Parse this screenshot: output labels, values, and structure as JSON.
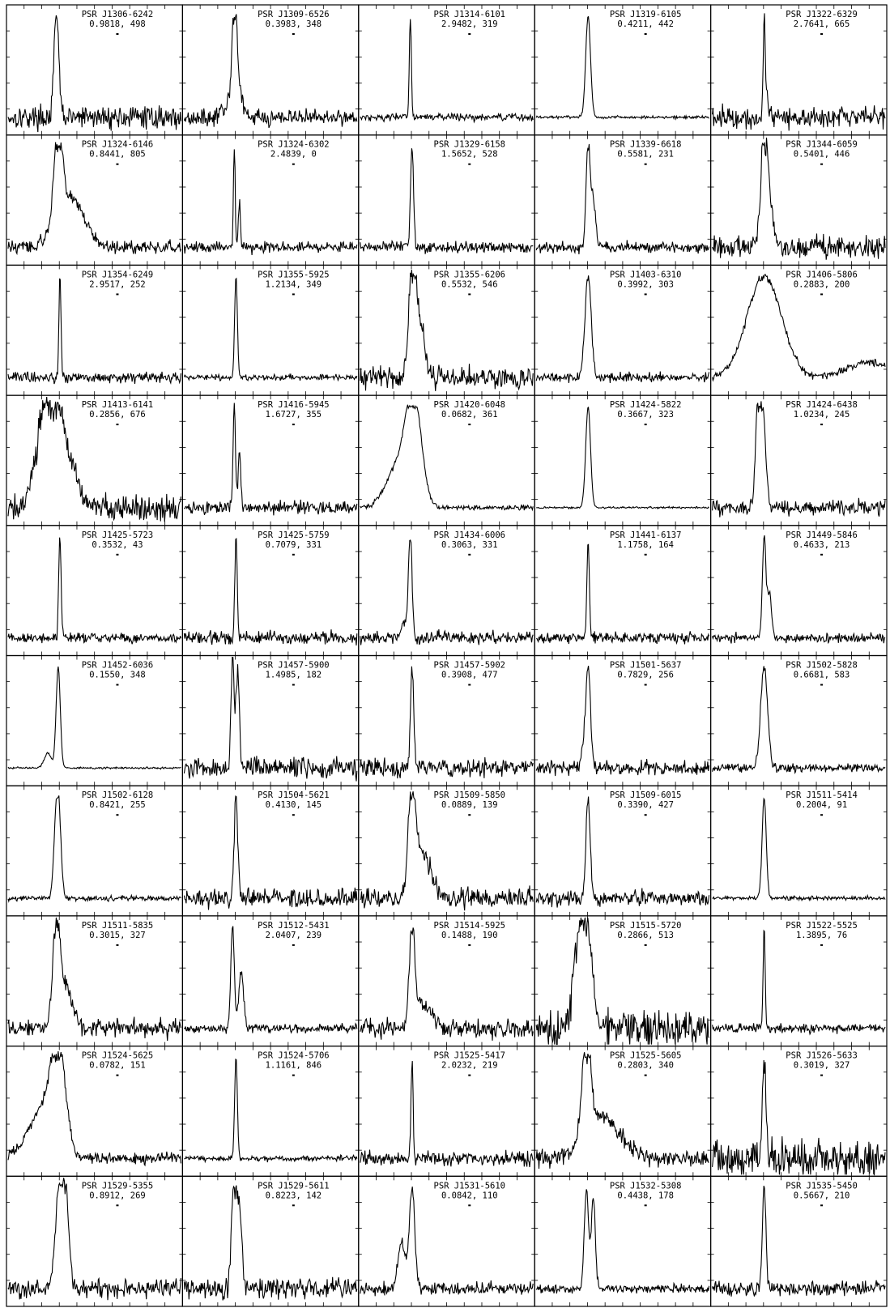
{
  "chart_data": {
    "type": "line",
    "layout": "grid of pulse profiles, 5 columns x 10 rows",
    "axes": "no labels; tick marks on all panel edges",
    "panels": [
      {
        "name": "PSR J1306-6242",
        "params": "0.9818, 498",
        "profile": {
          "peak_phase": 0.28,
          "width": 0.014,
          "noise": 0.12,
          "components": []
        }
      },
      {
        "name": "PSR J1309-6526",
        "params": "0.3983, 348",
        "profile": {
          "peak_phase": 0.29,
          "width": 0.012,
          "noise": 0.09,
          "components": [
            {
              "phase": 0.31,
              "amp": 0.35,
              "width": 0.02
            },
            {
              "phase": 0.26,
              "amp": 0.15,
              "width": 0.03
            }
          ]
        }
      },
      {
        "name": "PSR J1314-6101",
        "params": "2.9482, 319",
        "profile": {
          "peak_phase": 0.29,
          "width": 0.006,
          "noise": 0.04,
          "components": []
        }
      },
      {
        "name": "PSR J1319-6105",
        "params": "0.4211, 442",
        "profile": {
          "peak_phase": 0.3,
          "width": 0.014,
          "noise": 0.015,
          "components": []
        }
      },
      {
        "name": "PSR J1322-6329",
        "params": "2.7641, 665",
        "profile": {
          "peak_phase": 0.3,
          "width": 0.006,
          "noise": 0.12,
          "components": [
            {
              "phase": 0.32,
              "amp": 0.2,
              "width": 0.01
            }
          ]
        }
      },
      {
        "name": "PSR J1324-6146",
        "params": "0.8441, 805",
        "profile": {
          "peak_phase": 0.29,
          "width": 0.022,
          "noise": 0.07,
          "components": [
            {
              "phase": 0.36,
              "amp": 0.5,
              "width": 0.08
            }
          ]
        }
      },
      {
        "name": "PSR J1324-6302",
        "params": "2.4839, 0",
        "profile": {
          "peak_phase": 0.29,
          "width": 0.005,
          "noise": 0.06,
          "components": [
            {
              "phase": 0.32,
              "amp": 0.45,
              "width": 0.006
            }
          ]
        }
      },
      {
        "name": "PSR J1329-6158",
        "params": "1.5652, 528",
        "profile": {
          "peak_phase": 0.3,
          "width": 0.009,
          "noise": 0.06,
          "components": []
        }
      },
      {
        "name": "PSR J1339-6618",
        "params": "0.5581, 231",
        "profile": {
          "peak_phase": 0.3,
          "width": 0.012,
          "noise": 0.06,
          "components": [
            {
              "phase": 0.33,
              "amp": 0.45,
              "width": 0.014
            }
          ]
        }
      },
      {
        "name": "PSR J1344-6059",
        "params": "0.5401, 446",
        "profile": {
          "peak_phase": 0.3,
          "width": 0.02,
          "noise": 0.12,
          "components": [
            {
              "phase": 0.33,
              "amp": 0.35,
              "width": 0.025
            }
          ]
        }
      },
      {
        "name": "PSR J1354-6249",
        "params": "2.9517, 252",
        "profile": {
          "peak_phase": 0.3,
          "width": 0.006,
          "noise": 0.06,
          "components": []
        }
      },
      {
        "name": "PSR J1355-5925",
        "params": "1.2134, 349",
        "profile": {
          "peak_phase": 0.3,
          "width": 0.008,
          "noise": 0.03,
          "components": []
        }
      },
      {
        "name": "PSR J1355-6206",
        "params": "0.5532, 546",
        "profile": {
          "peak_phase": 0.3,
          "width": 0.02,
          "noise": 0.12,
          "components": [
            {
              "phase": 0.34,
              "amp": 0.55,
              "width": 0.03
            }
          ]
        }
      },
      {
        "name": "PSR J1403-6310",
        "params": "0.3992, 303",
        "profile": {
          "peak_phase": 0.3,
          "width": 0.018,
          "noise": 0.05,
          "components": []
        }
      },
      {
        "name": "PSR J1406-5806",
        "params": "0.2883, 200",
        "profile": {
          "peak_phase": 0.3,
          "width": 0.1,
          "noise": 0.04,
          "components": [
            {
              "phase": 0.9,
              "amp": 0.15,
              "width": 0.12
            }
          ]
        }
      },
      {
        "name": "PSR J1413-6141",
        "params": "0.2856, 676",
        "profile": {
          "peak_phase": 0.27,
          "width": 0.05,
          "noise": 0.15,
          "components": [
            {
              "phase": 0.2,
              "amp": 0.6,
              "width": 0.05
            },
            {
              "phase": 0.36,
              "amp": 0.3,
              "width": 0.06
            }
          ]
        }
      },
      {
        "name": "PSR J1416-5945",
        "params": "1.6727, 355",
        "profile": {
          "peak_phase": 0.29,
          "width": 0.007,
          "noise": 0.07,
          "components": [
            {
              "phase": 0.32,
              "amp": 0.55,
              "width": 0.007
            }
          ]
        }
      },
      {
        "name": "PSR J1420-6048",
        "params": "0.0682, 361",
        "profile": {
          "peak_phase": 0.31,
          "width": 0.045,
          "noise": 0.03,
          "components": [
            {
              "phase": 0.22,
              "amp": 0.4,
              "width": 0.07
            }
          ]
        }
      },
      {
        "name": "PSR J1424-5822",
        "params": "0.3667, 323",
        "profile": {
          "peak_phase": 0.3,
          "width": 0.014,
          "noise": 0.01,
          "components": []
        }
      },
      {
        "name": "PSR J1424-6438",
        "params": "1.0234, 245",
        "profile": {
          "peak_phase": 0.29,
          "width": 0.018,
          "noise": 0.08,
          "components": [
            {
              "phase": 0.26,
              "amp": 0.8,
              "width": 0.012
            }
          ]
        }
      },
      {
        "name": "PSR J1425-5723",
        "params": "0.3532, 43",
        "profile": {
          "peak_phase": 0.3,
          "width": 0.007,
          "noise": 0.05,
          "components": []
        }
      },
      {
        "name": "PSR J1425-5759",
        "params": "0.7079, 331",
        "profile": {
          "peak_phase": 0.3,
          "width": 0.007,
          "noise": 0.07,
          "components": []
        }
      },
      {
        "name": "PSR J1434-6006",
        "params": "0.3063, 331",
        "profile": {
          "peak_phase": 0.29,
          "width": 0.01,
          "noise": 0.07,
          "components": [
            {
              "phase": 0.26,
              "amp": 0.15,
              "width": 0.02
            }
          ]
        }
      },
      {
        "name": "PSR J1441-6137",
        "params": "1.1758, 164",
        "profile": {
          "peak_phase": 0.3,
          "width": 0.007,
          "noise": 0.06,
          "components": []
        }
      },
      {
        "name": "PSR J1449-5846",
        "params": "0.4633, 213",
        "profile": {
          "peak_phase": 0.3,
          "width": 0.01,
          "noise": 0.05,
          "components": [
            {
              "phase": 0.33,
              "amp": 0.45,
              "width": 0.012
            }
          ]
        }
      },
      {
        "name": "PSR J1452-6036",
        "params": "0.1550, 348",
        "profile": {
          "peak_phase": 0.29,
          "width": 0.012,
          "noise": 0.01,
          "components": [
            {
              "phase": 0.23,
              "amp": 0.15,
              "width": 0.02
            }
          ]
        }
      },
      {
        "name": "PSR J1457-5900",
        "params": "1.4985, 182",
        "profile": {
          "peak_phase": 0.28,
          "width": 0.01,
          "noise": 0.12,
          "components": [
            {
              "phase": 0.31,
              "amp": 0.9,
              "width": 0.01
            }
          ]
        }
      },
      {
        "name": "PSR J1457-5902",
        "params": "0.3908, 477",
        "profile": {
          "peak_phase": 0.3,
          "width": 0.01,
          "noise": 0.1,
          "components": []
        }
      },
      {
        "name": "PSR J1501-5637",
        "params": "0.7829, 256",
        "profile": {
          "peak_phase": 0.3,
          "width": 0.014,
          "noise": 0.08,
          "components": [
            {
              "phase": 0.27,
              "amp": 0.2,
              "width": 0.01
            }
          ]
        }
      },
      {
        "name": "PSR J1502-5828",
        "params": "0.6681, 583",
        "profile": {
          "peak_phase": 0.3,
          "width": 0.02,
          "noise": 0.05,
          "components": []
        }
      },
      {
        "name": "PSR J1502-6128",
        "params": "0.8421, 255",
        "profile": {
          "peak_phase": 0.29,
          "width": 0.015,
          "noise": 0.03,
          "components": [
            {
              "phase": 0.27,
              "amp": 0.3,
              "width": 0.012
            }
          ]
        }
      },
      {
        "name": "PSR J1504-5621",
        "params": "0.4130, 145",
        "profile": {
          "peak_phase": 0.3,
          "width": 0.01,
          "noise": 0.1,
          "components": []
        }
      },
      {
        "name": "PSR J1509-5850",
        "params": "0.0889, 139",
        "profile": {
          "peak_phase": 0.3,
          "width": 0.02,
          "noise": 0.1,
          "components": [
            {
              "phase": 0.36,
              "amp": 0.45,
              "width": 0.05
            }
          ]
        }
      },
      {
        "name": "PSR J1509-6015",
        "params": "0.3390, 427",
        "profile": {
          "peak_phase": 0.3,
          "width": 0.012,
          "noise": 0.08,
          "components": []
        }
      },
      {
        "name": "PSR J1511-5414",
        "params": "0.2004, 91",
        "profile": {
          "peak_phase": 0.3,
          "width": 0.012,
          "noise": 0.02,
          "components": []
        }
      },
      {
        "name": "PSR J1511-5835",
        "params": "0.3015, 327",
        "profile": {
          "peak_phase": 0.28,
          "width": 0.02,
          "noise": 0.1,
          "components": [
            {
              "phase": 0.33,
              "amp": 0.4,
              "width": 0.04
            }
          ]
        }
      },
      {
        "name": "PSR J1512-5431",
        "params": "2.0407, 239",
        "profile": {
          "peak_phase": 0.28,
          "width": 0.01,
          "noise": 0.05,
          "components": [
            {
              "phase": 0.33,
              "amp": 0.55,
              "width": 0.014
            }
          ]
        }
      },
      {
        "name": "PSR J1514-5925",
        "params": "0.1488, 190",
        "profile": {
          "peak_phase": 0.3,
          "width": 0.015,
          "noise": 0.1,
          "components": [
            {
              "phase": 0.36,
              "amp": 0.25,
              "width": 0.05
            }
          ]
        }
      },
      {
        "name": "PSR J1515-5720",
        "params": "0.2866, 513",
        "profile": {
          "peak_phase": 0.29,
          "width": 0.03,
          "noise": 0.2,
          "components": [
            {
              "phase": 0.24,
              "amp": 0.7,
              "width": 0.03
            }
          ]
        }
      },
      {
        "name": "PSR J1522-5525",
        "params": "1.3895, 76",
        "profile": {
          "peak_phase": 0.3,
          "width": 0.006,
          "noise": 0.05,
          "components": []
        }
      },
      {
        "name": "PSR J1524-5625",
        "params": "0.0782, 151",
        "profile": {
          "peak_phase": 0.29,
          "width": 0.04,
          "noise": 0.06,
          "components": [
            {
              "phase": 0.2,
              "amp": 0.5,
              "width": 0.08
            }
          ]
        }
      },
      {
        "name": "PSR J1524-5706",
        "params": "1.1161, 846",
        "profile": {
          "peak_phase": 0.3,
          "width": 0.008,
          "noise": 0.03,
          "components": []
        }
      },
      {
        "name": "PSR J1525-5417",
        "params": "2.0232, 219",
        "profile": {
          "peak_phase": 0.3,
          "width": 0.006,
          "noise": 0.08,
          "components": []
        }
      },
      {
        "name": "PSR J1525-5605",
        "params": "0.2803, 340",
        "profile": {
          "peak_phase": 0.29,
          "width": 0.025,
          "noise": 0.09,
          "components": [
            {
              "phase": 0.38,
              "amp": 0.4,
              "width": 0.1
            }
          ]
        }
      },
      {
        "name": "PSR J1526-5633",
        "params": "0.3019, 327",
        "profile": {
          "peak_phase": 0.3,
          "width": 0.01,
          "noise": 0.2,
          "components": []
        }
      },
      {
        "name": "PSR J1529-5355",
        "params": "0.8912, 269",
        "profile": {
          "peak_phase": 0.3,
          "width": 0.025,
          "noise": 0.1,
          "components": [
            {
              "phase": 0.33,
              "amp": 0.8,
              "width": 0.02
            }
          ]
        }
      },
      {
        "name": "PSR J1529-5611",
        "params": "0.8223, 142",
        "profile": {
          "peak_phase": 0.29,
          "width": 0.015,
          "noise": 0.12,
          "components": [
            {
              "phase": 0.32,
              "amp": 0.7,
              "width": 0.015
            }
          ]
        }
      },
      {
        "name": "PSR J1531-5610",
        "params": "0.0842, 110",
        "profile": {
          "peak_phase": 0.3,
          "width": 0.016,
          "noise": 0.07,
          "components": [
            {
              "phase": 0.24,
              "amp": 0.45,
              "width": 0.02
            }
          ]
        }
      },
      {
        "name": "PSR J1532-5308",
        "params": "0.4438, 178",
        "profile": {
          "peak_phase": 0.29,
          "width": 0.012,
          "noise": 0.05,
          "components": [
            {
              "phase": 0.33,
              "amp": 0.9,
              "width": 0.012
            }
          ]
        }
      },
      {
        "name": "PSR J1535-5450",
        "params": "0.5667, 210",
        "profile": {
          "peak_phase": 0.3,
          "width": 0.01,
          "noise": 0.08,
          "components": []
        }
      }
    ]
  }
}
